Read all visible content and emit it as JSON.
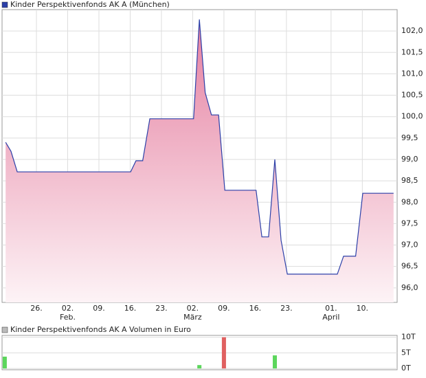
{
  "chart_data": [
    {
      "type": "area",
      "title": "Kinder Perspektivenfonds AK A (München)",
      "color": "#2b3fa8",
      "fill": "#e57fa0",
      "x": [
        -6.9,
        -5.7,
        -4.3,
        21.1,
        22.3,
        23.8,
        25.4,
        35.2,
        36.5,
        37.8,
        39.2,
        40.8,
        42.2,
        49.2,
        50.5,
        52.0,
        53.4,
        54.8,
        56.2,
        67.4,
        68.8,
        71.5,
        73.1,
        80.0
      ],
      "values": [
        99.4,
        99.19,
        98.71,
        98.71,
        98.97,
        98.97,
        99.95,
        99.95,
        102.27,
        100.56,
        100.04,
        100.04,
        98.28,
        98.28,
        97.19,
        97.19,
        99.0,
        97.11,
        96.32,
        96.32,
        96.74,
        96.74,
        98.21,
        98.21
      ],
      "xlim": [
        -7.7,
        80.8
      ],
      "ylim": [
        95.66,
        102.5
      ],
      "xticks": [
        {
          "value": 0,
          "label": "26."
        },
        {
          "value": 7,
          "label": "02."
        },
        {
          "value": 14,
          "label": "09."
        },
        {
          "value": 21,
          "label": "16."
        },
        {
          "value": 28,
          "label": "23."
        },
        {
          "value": 35,
          "label": "02."
        },
        {
          "value": 42,
          "label": "09."
        },
        {
          "value": 49,
          "label": "16."
        },
        {
          "value": 56,
          "label": "23."
        },
        {
          "value": 66,
          "label": "01."
        },
        {
          "value": 73,
          "label": "10."
        }
      ],
      "month_labels": [
        {
          "value": 7,
          "label": "Feb."
        },
        {
          "value": 35,
          "label": "März"
        },
        {
          "value": 66,
          "label": "April"
        }
      ],
      "yticks": [
        {
          "value": 96,
          "label": "96,0"
        },
        {
          "value": 96.5,
          "label": "96,5"
        },
        {
          "value": 97,
          "label": "97,0"
        },
        {
          "value": 97.5,
          "label": "97,5"
        },
        {
          "value": 98,
          "label": "98,0"
        },
        {
          "value": 98.5,
          "label": "98,5"
        },
        {
          "value": 99,
          "label": "99,0"
        },
        {
          "value": 99.5,
          "label": "99,5"
        },
        {
          "value": 100,
          "label": "100,0"
        },
        {
          "value": 100.5,
          "label": "100,5"
        },
        {
          "value": 101,
          "label": "101,0"
        },
        {
          "value": 101.5,
          "label": "101,5"
        },
        {
          "value": 102,
          "label": "102,0"
        }
      ],
      "grid": true
    },
    {
      "type": "bar",
      "title": "Kinder Perspektivenfonds AK A Volumen in Euro",
      "x": [
        -7.1,
        36.5,
        42.0,
        53.4
      ],
      "values": [
        3.8,
        1.1,
        10,
        4.2
      ],
      "colors": [
        "#5cd65c",
        "#5cd65c",
        "#e06060",
        "#5cd65c"
      ],
      "xlim": [
        -7.7,
        80.8
      ],
      "ylim": [
        -0.4,
        10.6
      ],
      "yticks": [
        {
          "value": 0,
          "label": "0T"
        },
        {
          "value": 5,
          "label": "5T"
        },
        {
          "value": 10,
          "label": "10T"
        }
      ],
      "grid": true
    }
  ]
}
